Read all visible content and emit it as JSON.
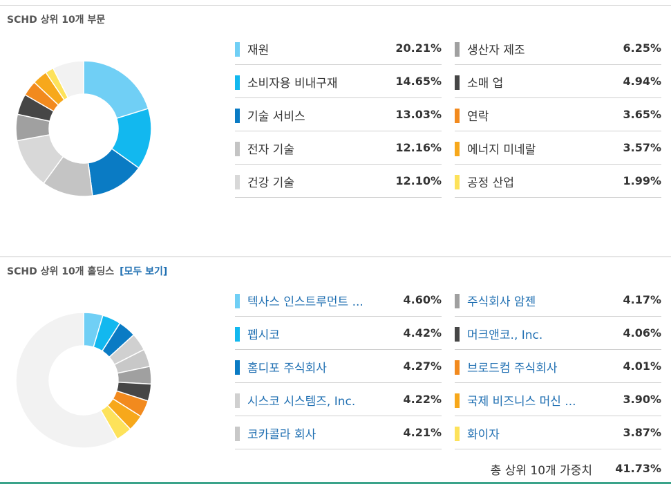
{
  "sectors": {
    "title": "SCHD 상위 10개 부문",
    "items": [
      {
        "label": "재원",
        "value": "20.21%",
        "pct": 20.21,
        "color": "#70cff5"
      },
      {
        "label": "소비자용 비내구재",
        "value": "14.65%",
        "pct": 14.65,
        "color": "#12b8ef"
      },
      {
        "label": "기술 서비스",
        "value": "13.03%",
        "pct": 13.03,
        "color": "#0a7bc4"
      },
      {
        "label": "전자 기술",
        "value": "12.16%",
        "pct": 12.16,
        "color": "#c4c4c4"
      },
      {
        "label": "건강 기술",
        "value": "12.10%",
        "pct": 12.1,
        "color": "#d8d8d8"
      },
      {
        "label": "생산자 제조",
        "value": "6.25%",
        "pct": 6.25,
        "color": "#a0a0a0"
      },
      {
        "label": "소매 업",
        "value": "4.94%",
        "pct": 4.94,
        "color": "#464646"
      },
      {
        "label": "연락",
        "value": "3.65%",
        "pct": 3.65,
        "color": "#f28a1e"
      },
      {
        "label": "에너지 미네랄",
        "value": "3.57%",
        "pct": 3.57,
        "color": "#f7a81b"
      },
      {
        "label": "공정 산업",
        "value": "1.99%",
        "pct": 1.99,
        "color": "#fde25a"
      }
    ],
    "remainder_color": "#f2f2f2"
  },
  "holdings": {
    "title": "SCHD 상위 10개 홀딩스",
    "view_all": "[모두 보기]",
    "items": [
      {
        "label": "텍사스 인스트루먼트 ...",
        "value": "4.60%",
        "pct": 4.6,
        "color": "#70cff5"
      },
      {
        "label": "펩시코",
        "value": "4.42%",
        "pct": 4.42,
        "color": "#12b8ef"
      },
      {
        "label": "홈디포 주식회사",
        "value": "4.27%",
        "pct": 4.27,
        "color": "#0a7bc4"
      },
      {
        "label": "시스코 시스템즈, Inc.",
        "value": "4.22%",
        "pct": 4.22,
        "color": "#d0d0d0"
      },
      {
        "label": "코카콜라 회사",
        "value": "4.21%",
        "pct": 4.21,
        "color": "#c8c8c8"
      },
      {
        "label": "주식회사 암젠",
        "value": "4.17%",
        "pct": 4.17,
        "color": "#a0a0a0"
      },
      {
        "label": "머크앤코., Inc.",
        "value": "4.06%",
        "pct": 4.06,
        "color": "#464646"
      },
      {
        "label": "브로드컴 주식회사",
        "value": "4.01%",
        "pct": 4.01,
        "color": "#f28a1e"
      },
      {
        "label": "국제 비즈니스 머신 ...",
        "value": "3.90%",
        "pct": 3.9,
        "color": "#f7a81b"
      },
      {
        "label": "화이자",
        "value": "3.87%",
        "pct": 3.87,
        "color": "#fde25a"
      }
    ],
    "remainder_color": "#f2f2f2",
    "total_label": "총 상위 10개 가중치",
    "total_value": "41.73%"
  }
}
